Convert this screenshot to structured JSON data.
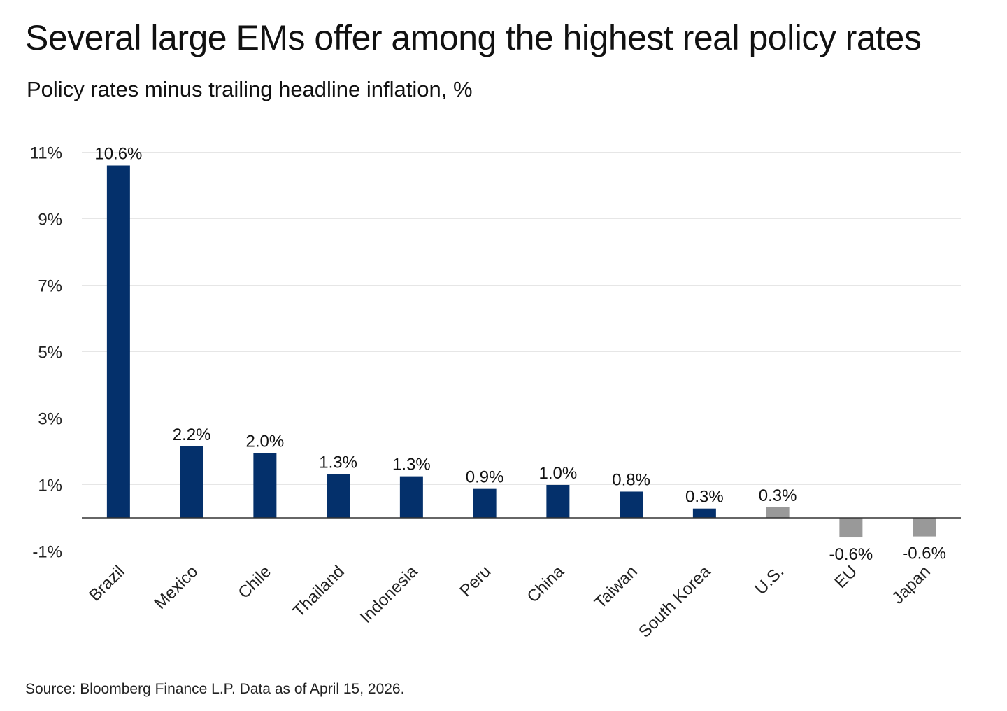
{
  "title": "Several large EMs offer among the highest real policy rates",
  "subtitle": "Policy rates minus trailing headline inflation, %",
  "source": "Source: Bloomberg Finance L.P. Data as of April 15, 2026.",
  "colors": {
    "em_bar": "#04306b",
    "dm_bar": "#999999",
    "gridline": "#e6e6e6",
    "baseline": "#333333",
    "text": "#111111"
  },
  "chart_data": {
    "type": "bar",
    "title": "",
    "xlabel": "",
    "ylabel": "",
    "categories": [
      "Brazil",
      "Mexico",
      "Chile",
      "Thailand",
      "Indonesia",
      "Peru",
      "China",
      "Taiwan",
      "South Korea",
      "U.S.",
      "EU",
      "Japan"
    ],
    "values": [
      10.6,
      2.2,
      2.0,
      1.3,
      1.3,
      0.9,
      1.0,
      0.8,
      0.3,
      0.3,
      -0.6,
      -0.6
    ],
    "bar_values": [
      10.6,
      2.15,
      1.95,
      1.32,
      1.25,
      0.87,
      0.99,
      0.79,
      0.28,
      0.32,
      -0.59,
      -0.56
    ],
    "data_labels": [
      "10.6%",
      "2.2%",
      "2.0%",
      "1.3%",
      "1.3%",
      "0.9%",
      "1.0%",
      "0.8%",
      "0.3%",
      "0.3%",
      "-0.6%",
      "-0.6%"
    ],
    "groups": [
      "em",
      "em",
      "em",
      "em",
      "em",
      "em",
      "em",
      "em",
      "em",
      "dm",
      "dm",
      "dm"
    ],
    "yticks": [
      11,
      9,
      7,
      5,
      3,
      1,
      -1
    ],
    "ytick_labels": [
      "11%",
      "9%",
      "7%",
      "5%",
      "3%",
      "1%",
      "-1%"
    ],
    "ylim": [
      -1,
      11
    ],
    "grid": true,
    "legend": "none"
  }
}
